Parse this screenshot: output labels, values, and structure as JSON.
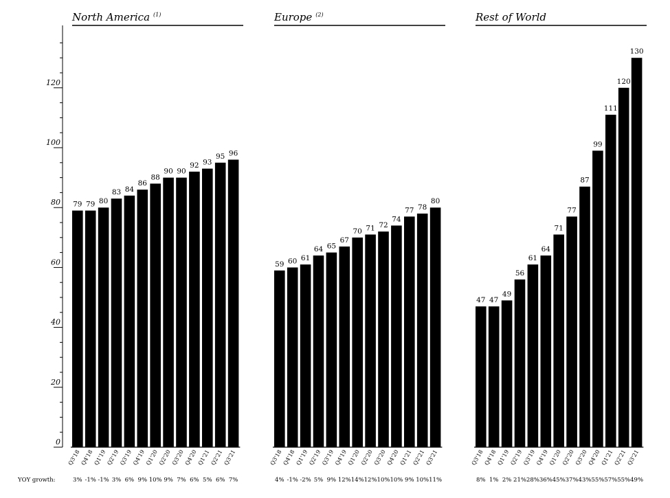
{
  "yoy_growth_label": "YOY growth:",
  "chart_data": [
    {
      "type": "bar",
      "title": "North America",
      "title_note": "(1)",
      "ylim": [
        0,
        135
      ],
      "yticks": [
        0,
        20,
        40,
        60,
        80,
        100,
        120
      ],
      "categories": [
        "Q3'18",
        "Q4'18",
        "Q1'19",
        "Q2'19",
        "Q3'19",
        "Q4'19",
        "Q1'20",
        "Q2'20",
        "Q3'20",
        "Q4'20",
        "Q1'21",
        "Q2'21",
        "Q3'21"
      ],
      "values": [
        79,
        79,
        80,
        83,
        84,
        86,
        88,
        90,
        90,
        92,
        93,
        95,
        96
      ],
      "yoy_growth": [
        "3%",
        "-1%",
        "-1%",
        "3%",
        "6%",
        "9%",
        "10%",
        "9%",
        "7%",
        "6%",
        "5%",
        "6%",
        "7%"
      ]
    },
    {
      "type": "bar",
      "title": "Europe",
      "title_note": "(2)",
      "ylim": [
        0,
        135
      ],
      "categories": [
        "Q3'18",
        "Q4'18",
        "Q1'19",
        "Q2'19",
        "Q3'19",
        "Q4'19",
        "Q1'20",
        "Q2'20",
        "Q3'20",
        "Q4'20",
        "Q1'21",
        "Q2'21",
        "Q3'21"
      ],
      "values": [
        59,
        60,
        61,
        64,
        65,
        67,
        70,
        71,
        72,
        74,
        77,
        78,
        80
      ],
      "yoy_growth": [
        "4%",
        "-1%",
        "-2%",
        "5%",
        "9%",
        "12%",
        "14%",
        "12%",
        "10%",
        "10%",
        "9%",
        "10%",
        "11%"
      ]
    },
    {
      "type": "bar",
      "title": "Rest of World",
      "title_note": "",
      "ylim": [
        0,
        135
      ],
      "categories": [
        "Q3'18",
        "Q4'18",
        "Q1'19",
        "Q2'19",
        "Q3'19",
        "Q4'19",
        "Q1'20",
        "Q2'20",
        "Q3'20",
        "Q4'20",
        "Q1'21",
        "Q2'21",
        "Q3'21"
      ],
      "values": [
        47,
        47,
        49,
        56,
        61,
        64,
        71,
        77,
        87,
        99,
        111,
        120,
        130
      ],
      "yoy_growth": [
        "8%",
        "1%",
        "2%",
        "21%",
        "28%",
        "36%",
        "45%",
        "37%",
        "43%",
        "55%",
        "57%",
        "55%",
        "49%"
      ]
    }
  ]
}
